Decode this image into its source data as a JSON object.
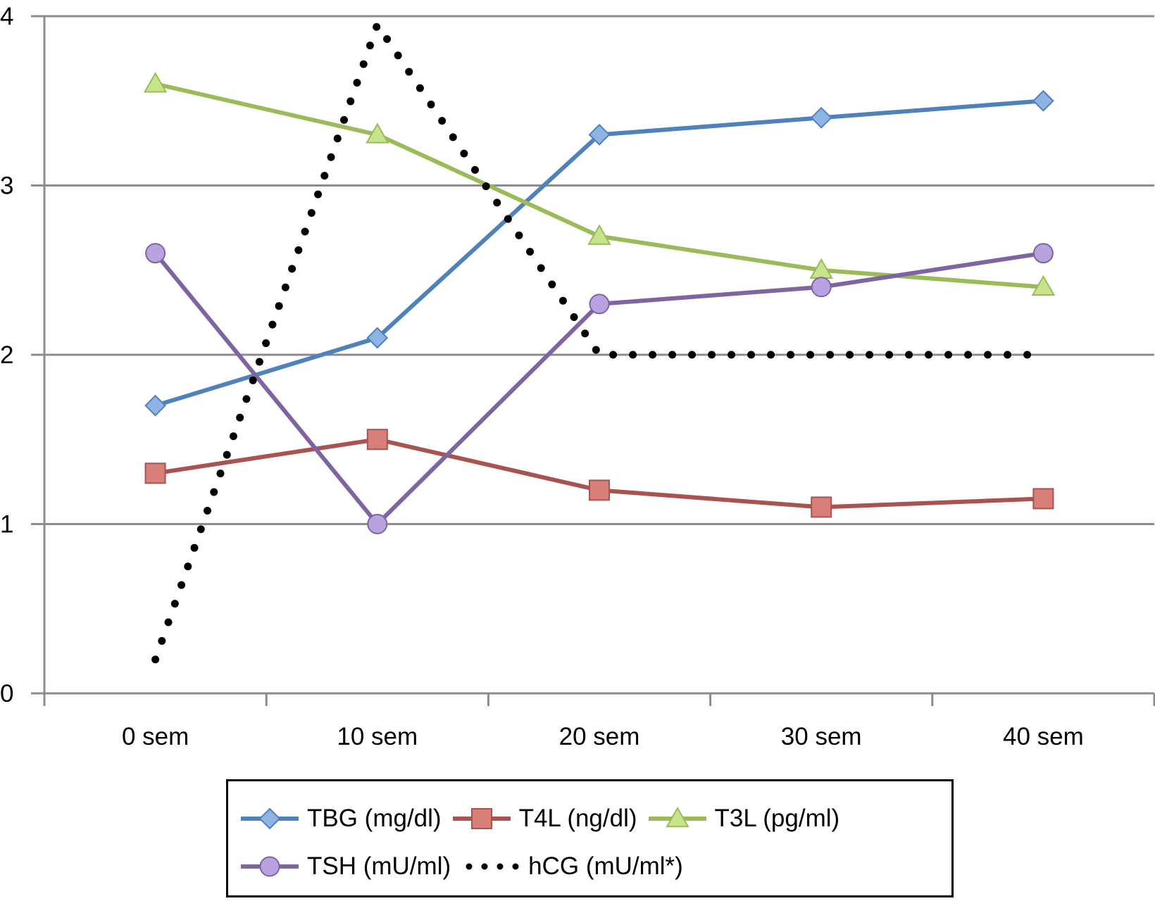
{
  "chart_data": {
    "type": "line",
    "title": "",
    "xlabel": "",
    "ylabel": "",
    "categories": [
      "0 sem",
      "10 sem",
      "20 sem",
      "30 sem",
      "40 sem"
    ],
    "ylim": [
      0,
      4
    ],
    "yticks": [
      "0",
      "1",
      "2",
      "3",
      "4"
    ],
    "grid": true,
    "legend_position": "bottom",
    "series": [
      {
        "name": "TBG (mg/dl)",
        "marker": "diamond",
        "color": "#4F81BD",
        "marker_fill": "#8EB4E3",
        "line": "solid",
        "values": [
          1.7,
          2.1,
          3.3,
          3.4,
          3.5
        ]
      },
      {
        "name": "T4L (ng/dl)",
        "marker": "square",
        "color": "#A9524F",
        "marker_fill": "#D97F79",
        "line": "solid",
        "values": [
          1.3,
          1.5,
          1.2,
          1.1,
          1.15
        ]
      },
      {
        "name": "T3L (pg/ml)",
        "marker": "triangle",
        "color": "#9BBB59",
        "marker_fill": "#C9E38A",
        "line": "solid",
        "values": [
          3.6,
          3.3,
          2.7,
          2.5,
          2.4
        ]
      },
      {
        "name": "TSH (mU/ml)",
        "marker": "circle",
        "color": "#7F64A2",
        "marker_fill": "#B8A2E0",
        "line": "solid",
        "values": [
          2.6,
          1.0,
          2.3,
          2.4,
          2.6
        ]
      },
      {
        "name": "hCG (mU/ml*)",
        "marker": "none",
        "color": "#000000",
        "marker_fill": "#000000",
        "line": "dotted",
        "values": [
          0.2,
          3.95,
          2.0,
          2.0,
          2.0
        ]
      }
    ]
  }
}
